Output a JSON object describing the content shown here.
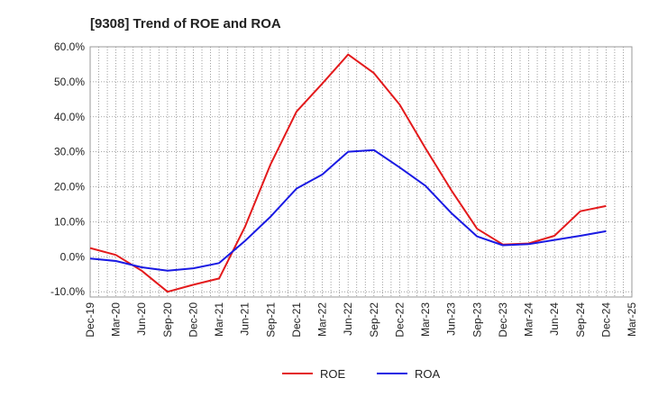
{
  "chart_data": {
    "type": "line",
    "title": "[9308]  Trend of ROE and ROA",
    "xlabel": "",
    "ylabel": "",
    "ylim": [
      -11.5,
      60.0
    ],
    "y_ticks": [
      -10,
      0,
      10,
      20,
      30,
      40,
      50,
      60
    ],
    "y_tick_labels": [
      "-10.0%",
      "0.0%",
      "10.0%",
      "20.0%",
      "30.0%",
      "40.0%",
      "50.0%",
      "60.0%"
    ],
    "x_ticks": [
      "Dec-19",
      "Mar-20",
      "Jun-20",
      "Sep-20",
      "Dec-20",
      "Mar-21",
      "Jun-21",
      "Sep-21",
      "Dec-21",
      "Mar-22",
      "Jun-22",
      "Sep-22",
      "Dec-22",
      "Mar-23",
      "Jun-23",
      "Sep-23",
      "Dec-23",
      "Mar-24",
      "Jun-24",
      "Sep-24",
      "Dec-24",
      "Mar-25"
    ],
    "categories": [
      "Dec-19",
      "Mar-20",
      "Jun-20",
      "Sep-20",
      "Dec-20",
      "Mar-21",
      "Jun-21",
      "Sep-21",
      "Dec-21",
      "Mar-22",
      "Jun-22",
      "Sep-22",
      "Dec-22",
      "Mar-23",
      "Jun-23",
      "Sep-23",
      "Dec-23",
      "Mar-24",
      "Jun-24",
      "Sep-24",
      "Dec-24"
    ],
    "grid": true,
    "legend_position": "bottom",
    "series": [
      {
        "name": "ROE",
        "color": "#e31a1c",
        "values": [
          2.5,
          0.5,
          -4.0,
          -10.0,
          -8.0,
          -6.2,
          8.5,
          26.5,
          41.5,
          49.5,
          57.8,
          52.5,
          43.5,
          31.0,
          19.0,
          8.0,
          3.5,
          3.8,
          6.0,
          13.0,
          14.5
        ]
      },
      {
        "name": "ROA",
        "color": "#1a1ae3",
        "values": [
          -0.5,
          -1.2,
          -3.0,
          -4.0,
          -3.3,
          -1.8,
          4.5,
          11.5,
          19.5,
          23.5,
          30.0,
          30.5,
          25.5,
          20.3,
          12.5,
          5.8,
          3.3,
          3.6,
          4.8,
          6.0,
          7.3
        ]
      }
    ]
  }
}
